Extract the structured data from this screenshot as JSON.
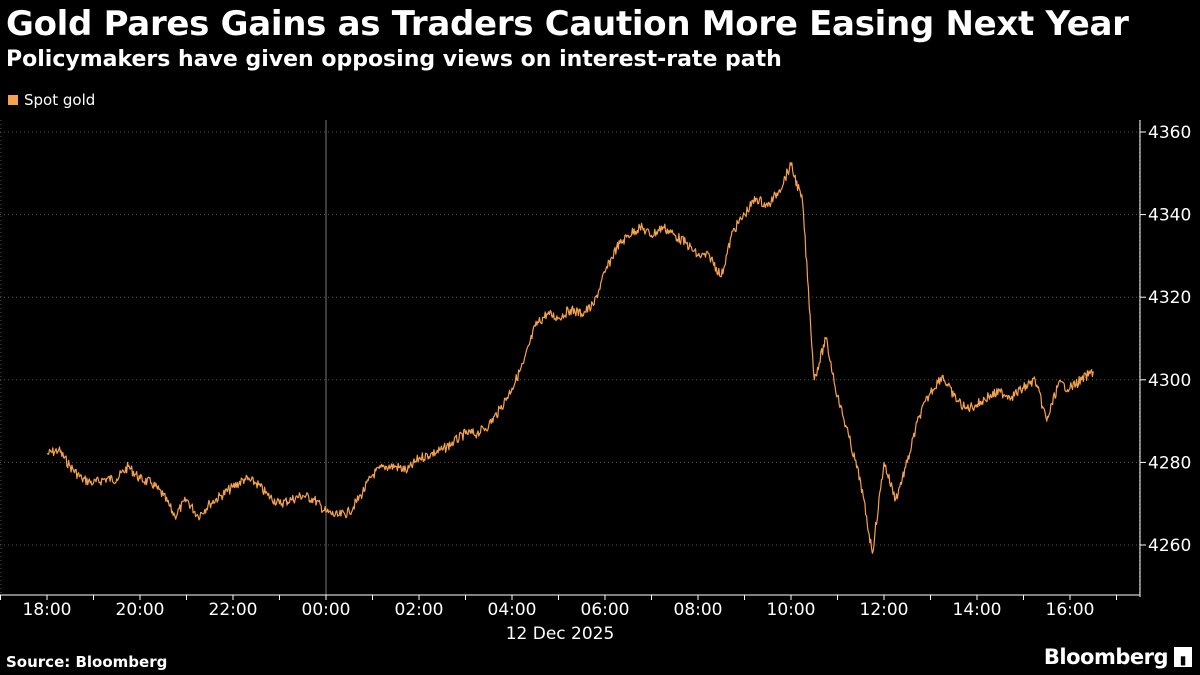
{
  "header": {
    "title": "Gold Pares Gains as Traders Caution More Easing Next Year",
    "subtitle": "Policymakers have given opposing views on interest-rate path"
  },
  "legend": {
    "label": "Spot gold",
    "color": "#F5A24C"
  },
  "footer": {
    "source": "Source: Bloomberg",
    "brand": "Bloomberg"
  },
  "colors": {
    "background": "#000000",
    "series": "#F5A24C",
    "grid": "#555555"
  },
  "chart_data": {
    "type": "line",
    "title": "Gold Pares Gains as Traders Caution More Easing Next Year",
    "subtitle": "Policymakers have given opposing views on interest-rate path",
    "xlabel": "",
    "ylabel": "",
    "date_label": "12 Dec 2025",
    "x_tick_labels": [
      "18:00",
      "20:00",
      "22:00",
      "00:00",
      "02:00",
      "04:00",
      "06:00",
      "08:00",
      "10:00",
      "12:00",
      "14:00",
      "16:00"
    ],
    "y_ticks": [
      4260,
      4280,
      4300,
      4320,
      4340,
      4360
    ],
    "ylim": [
      4250,
      4364
    ],
    "grid": true,
    "legend_position": "top-left",
    "series": [
      {
        "name": "Spot gold",
        "color": "#F5A24C",
        "points": [
          [
            "18:00",
            4282
          ],
          [
            "18:15",
            4283
          ],
          [
            "18:30",
            4279
          ],
          [
            "18:45",
            4276
          ],
          [
            "19:00",
            4275
          ],
          [
            "19:15",
            4276
          ],
          [
            "19:30",
            4276
          ],
          [
            "19:45",
            4279
          ],
          [
            "20:00",
            4276
          ],
          [
            "20:15",
            4275
          ],
          [
            "20:30",
            4272
          ],
          [
            "20:45",
            4267
          ],
          [
            "21:00",
            4271
          ],
          [
            "21:15",
            4267
          ],
          [
            "21:30",
            4270
          ],
          [
            "21:45",
            4272
          ],
          [
            "22:00",
            4274
          ],
          [
            "22:15",
            4276
          ],
          [
            "22:30",
            4275
          ],
          [
            "22:45",
            4272
          ],
          [
            "23:00",
            4270
          ],
          [
            "23:15",
            4271
          ],
          [
            "23:30",
            4272
          ],
          [
            "23:45",
            4271
          ],
          [
            "00:00",
            4268
          ],
          [
            "00:15",
            4267
          ],
          [
            "00:30",
            4268
          ],
          [
            "00:45",
            4272
          ],
          [
            "01:00",
            4277
          ],
          [
            "01:15",
            4279
          ],
          [
            "01:30",
            4279
          ],
          [
            "01:45",
            4278
          ],
          [
            "02:00",
            4281
          ],
          [
            "02:15",
            4282
          ],
          [
            "02:30",
            4283
          ],
          [
            "02:45",
            4285
          ],
          [
            "03:00",
            4287
          ],
          [
            "03:15",
            4287
          ],
          [
            "03:30",
            4289
          ],
          [
            "03:45",
            4293
          ],
          [
            "04:00",
            4298
          ],
          [
            "04:15",
            4304
          ],
          [
            "04:30",
            4313
          ],
          [
            "04:45",
            4316
          ],
          [
            "05:00",
            4315
          ],
          [
            "05:15",
            4317
          ],
          [
            "05:30",
            4316
          ],
          [
            "05:45",
            4318
          ],
          [
            "06:00",
            4326
          ],
          [
            "06:15",
            4332
          ],
          [
            "06:30",
            4335
          ],
          [
            "06:45",
            4337
          ],
          [
            "07:00",
            4335
          ],
          [
            "07:15",
            4337
          ],
          [
            "07:30",
            4335
          ],
          [
            "07:45",
            4333
          ],
          [
            "08:00",
            4330
          ],
          [
            "08:15",
            4330
          ],
          [
            "08:30",
            4325
          ],
          [
            "08:45",
            4336
          ],
          [
            "09:00",
            4340
          ],
          [
            "09:15",
            4344
          ],
          [
            "09:30",
            4342
          ],
          [
            "09:45",
            4346
          ],
          [
            "10:00",
            4352
          ],
          [
            "10:15",
            4343
          ],
          [
            "10:30",
            4300
          ],
          [
            "10:45",
            4310
          ],
          [
            "11:00",
            4296
          ],
          [
            "11:15",
            4286
          ],
          [
            "11:30",
            4275
          ],
          [
            "11:45",
            4258
          ],
          [
            "12:00",
            4280
          ],
          [
            "12:15",
            4271
          ],
          [
            "12:30",
            4280
          ],
          [
            "12:45",
            4291
          ],
          [
            "13:00",
            4297
          ],
          [
            "13:15",
            4301
          ],
          [
            "13:30",
            4296
          ],
          [
            "13:45",
            4293
          ],
          [
            "14:00",
            4294
          ],
          [
            "14:15",
            4296
          ],
          [
            "14:30",
            4297
          ],
          [
            "14:45",
            4296
          ],
          [
            "15:00",
            4298
          ],
          [
            "15:15",
            4300
          ],
          [
            "15:30",
            4290
          ],
          [
            "15:45",
            4299
          ],
          [
            "16:00",
            4298
          ],
          [
            "16:15",
            4300
          ],
          [
            "16:30",
            4302
          ]
        ]
      }
    ]
  }
}
